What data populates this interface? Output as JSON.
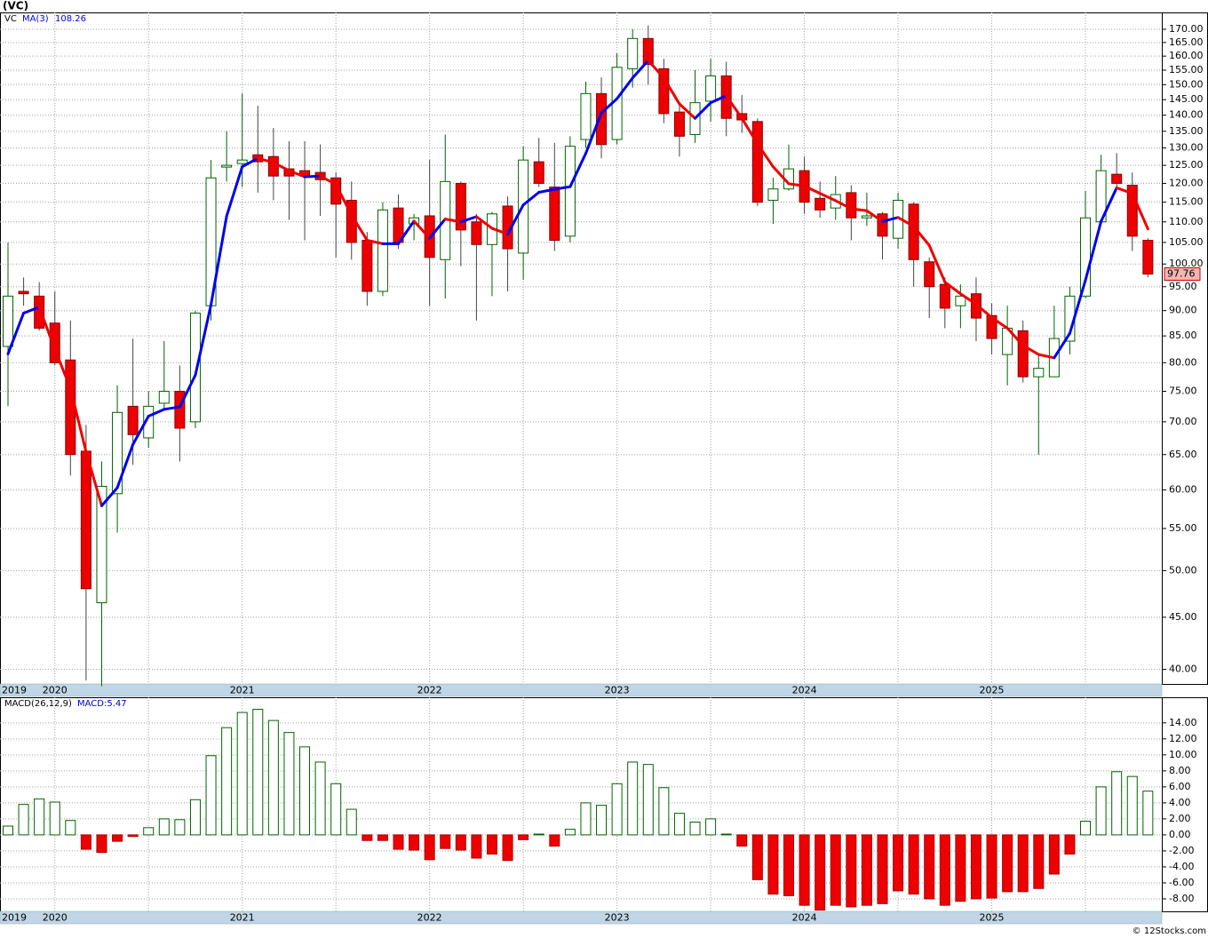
{
  "chart_data": [
    {
      "type": "candlestick",
      "title": "(VC)",
      "categories": [
        "2019",
        null,
        null,
        "2020",
        null,
        null,
        null,
        null,
        null,
        null,
        null,
        null,
        null,
        null,
        null,
        "2021",
        null,
        null,
        null,
        null,
        null,
        null,
        null,
        null,
        null,
        null,
        null,
        "2022",
        null,
        null,
        null,
        null,
        null,
        null,
        null,
        null,
        null,
        null,
        null,
        "2023",
        null,
        null,
        null,
        null,
        null,
        null,
        null,
        null,
        null,
        null,
        null,
        "2024",
        null,
        null,
        null,
        null,
        null,
        null,
        null,
        null,
        null,
        null,
        null,
        "2025",
        null,
        null,
        null,
        null,
        null,
        null,
        null,
        null,
        null,
        null
      ],
      "series": [
        {
          "name": "VC",
          "up_color": "#ffffff",
          "down_color": "#ee0000",
          "edge_color": "#006400",
          "open": [
            83,
            94,
            93,
            87.5,
            80.5,
            65.5,
            46.5,
            59.5,
            72.5,
            67.5,
            73,
            75,
            70,
            91,
            124.5,
            125.5,
            128,
            127.5,
            124,
            123.5,
            123,
            121.5,
            115.5,
            105.5,
            94,
            113.5,
            109.5,
            111.5,
            101,
            120,
            110,
            104.5,
            114,
            102.5,
            126,
            119,
            106.5,
            132.5,
            147,
            132.5,
            155.5,
            166.5,
            155.5,
            141,
            134,
            144.5,
            153,
            140.5,
            138,
            115.5,
            118.5,
            123.5,
            116,
            113.5,
            117.5,
            111,
            112,
            106,
            114.5,
            100.5,
            95.5,
            91,
            93.5,
            89,
            81.5,
            86,
            77.5,
            77.5,
            84,
            93,
            110,
            122.5,
            119.5,
            105.5
          ],
          "high": [
            105,
            97,
            96,
            94,
            88,
            69.5,
            64,
            76,
            84.5,
            75,
            84,
            79.5,
            90,
            126.5,
            135,
            147,
            143,
            136,
            132,
            132,
            131,
            123,
            120.5,
            107.5,
            115,
            117,
            112,
            126.5,
            134,
            120.5,
            112,
            112.5,
            116.5,
            130.5,
            133,
            131.5,
            133.5,
            151,
            152.5,
            161,
            170,
            171.5,
            159,
            144,
            155,
            159,
            158,
            146.5,
            139,
            121.5,
            131,
            127.5,
            120.5,
            122,
            119.5,
            117.5,
            112.5,
            117.5,
            115,
            101.5,
            97,
            95.5,
            97,
            91.5,
            91,
            88,
            81.5,
            91,
            95,
            118,
            128,
            128.5,
            123,
            106
          ],
          "low": [
            72.5,
            91,
            86,
            79.5,
            62,
            39,
            38.5,
            54.5,
            63.5,
            66,
            72,
            64,
            69,
            88,
            120.5,
            119,
            117.5,
            115.5,
            110.5,
            105.5,
            111.5,
            101.5,
            101,
            91,
            93,
            103.5,
            105.5,
            91,
            92.5,
            99.5,
            88,
            93,
            94,
            96.5,
            119,
            103,
            105,
            130,
            127,
            131,
            149,
            150,
            137.5,
            127.5,
            131.5,
            138,
            133.5,
            134.5,
            114,
            109.5,
            118,
            112,
            111,
            110.5,
            105.5,
            109,
            101,
            103.5,
            95,
            88.5,
            86.5,
            86.5,
            84,
            81.5,
            76,
            76.5,
            65,
            77.5,
            81.5,
            92.5,
            110,
            119,
            103,
            97
          ],
          "close": [
            93,
            93.5,
            86.5,
            80,
            65,
            48,
            60.5,
            71.5,
            68,
            72.5,
            75,
            69,
            89.5,
            121.5,
            125,
            126.5,
            126,
            122,
            122,
            122,
            121,
            114.5,
            105,
            94,
            113,
            105,
            111,
            101.5,
            120.5,
            108,
            104.5,
            112,
            103.5,
            126.5,
            120,
            105.5,
            130.5,
            147,
            131,
            156,
            166.5,
            157,
            140.5,
            133.5,
            144,
            153,
            139,
            138.5,
            115,
            118.5,
            124,
            115,
            113,
            117,
            111,
            111.5,
            106.5,
            115.5,
            101,
            95,
            90.5,
            93,
            88.5,
            84.5,
            86.5,
            77.5,
            79,
            84.5,
            93,
            111,
            123.5,
            120,
            106.5,
            97.76
          ]
        },
        {
          "name": "MA(3)",
          "color": "#0000ee",
          "down_color": "#ee0000",
          "values": [
            81.6,
            89.5,
            90.7,
            82.5,
            75.5,
            65.4,
            57.9,
            60.3,
            66.5,
            70.9,
            72,
            72.4,
            77.8,
            91.2,
            111.4,
            124.6,
            127,
            125.8,
            123.5,
            121.8,
            122,
            119.7,
            111.7,
            105.5,
            104.7,
            104.7,
            110.2,
            106,
            110.7,
            110,
            111.3,
            108.4,
            107,
            114.3,
            117.6,
            118.4,
            119.1,
            128.4,
            140.7,
            145.3,
            152.3,
            158.4,
            152.3,
            143.6,
            139,
            144,
            146.3,
            139,
            131.2,
            124.6,
            119.9,
            119.3,
            117.3,
            115.4,
            113.3,
            112.8,
            110.1,
            111.1,
            108.9,
            104.3,
            96,
            93.5,
            91.3,
            88.6,
            86.5,
            83.2,
            81.5,
            80.9,
            85.5,
            96.4,
            110.1,
            118.8,
            117.3,
            108.26
          ]
        }
      ],
      "log": true,
      "grid": true,
      "ylim": [
        38.7,
        176.6
      ],
      "yticks": [
        {
          "value": 40,
          "label": "40.00"
        },
        {
          "value": 45,
          "label": "45.00"
        },
        {
          "value": 50,
          "label": "50.00"
        },
        {
          "value": 55,
          "label": "55.00"
        },
        {
          "value": 60,
          "label": "60.00"
        },
        {
          "value": 65,
          "label": "65.00"
        },
        {
          "value": 70,
          "label": "70.00"
        },
        {
          "value": 75,
          "label": "75.00"
        },
        {
          "value": 80,
          "label": "80.00"
        },
        {
          "value": 85,
          "label": "85.00"
        },
        {
          "value": 90,
          "label": "90.00"
        },
        {
          "value": 95,
          "label": "95.00"
        },
        {
          "value": 100,
          "label": "100.00"
        },
        {
          "value": 105,
          "label": "105.00"
        },
        {
          "value": 110,
          "label": "110.00"
        },
        {
          "value": 115,
          "label": "115.00"
        },
        {
          "value": 120,
          "label": "120.00"
        },
        {
          "value": 125,
          "label": "125.00"
        },
        {
          "value": 130,
          "label": "130.00"
        },
        {
          "value": 135,
          "label": "135.00"
        },
        {
          "value": 140,
          "label": "140.00"
        },
        {
          "value": 145,
          "label": "145.00"
        },
        {
          "value": 150,
          "label": "150.00"
        },
        {
          "value": 155,
          "label": "155.00"
        },
        {
          "value": 160,
          "label": "160.00"
        },
        {
          "value": 165,
          "label": "165.00"
        },
        {
          "value": 170,
          "label": "170.00"
        }
      ]
    },
    {
      "type": "bar",
      "categories": [
        "2019",
        null,
        null,
        "2020",
        null,
        null,
        null,
        null,
        null,
        null,
        null,
        null,
        null,
        null,
        null,
        "2021",
        null,
        null,
        null,
        null,
        null,
        null,
        null,
        null,
        null,
        null,
        null,
        "2022",
        null,
        null,
        null,
        null,
        null,
        null,
        null,
        null,
        null,
        null,
        null,
        "2023",
        null,
        null,
        null,
        null,
        null,
        null,
        null,
        null,
        null,
        null,
        null,
        "2024",
        null,
        null,
        null,
        null,
        null,
        null,
        null,
        null,
        null,
        null,
        null,
        "2025",
        null,
        null,
        null,
        null,
        null,
        null,
        null,
        null,
        null,
        null
      ],
      "series": [
        {
          "name": "MACD(26,12,9)",
          "legend_label": "MACD:5.47",
          "color": "#ffffff",
          "negative_color": "#ee0000",
          "edge_color": "#006400",
          "values": [
            1.1,
            3.8,
            4.5,
            4.1,
            1.8,
            -1.8,
            -2.2,
            -0.8,
            -0.2,
            0.9,
            2,
            1.9,
            4.4,
            9.9,
            13.4,
            15.3,
            15.7,
            14.3,
            12.8,
            11,
            9.1,
            6.4,
            3.2,
            -0.7,
            -0.7,
            -1.8,
            -1.9,
            -3.1,
            -1.7,
            -1.9,
            -2.9,
            -2.4,
            -3.2,
            -0.6,
            0.1,
            -1.4,
            0.7,
            4,
            3.7,
            6.4,
            9.1,
            8.8,
            5.9,
            2.7,
            1.6,
            2,
            0.1,
            -1.4,
            -5.6,
            -7.4,
            -7.6,
            -8.8,
            -9.4,
            -8.8,
            -9,
            -8.8,
            -8.6,
            -7,
            -7.4,
            -8,
            -8.8,
            -8.3,
            -8,
            -7.9,
            -7.1,
            -7.1,
            -6.7,
            -4.9,
            -2.4,
            1.7,
            6,
            7.9,
            7.3,
            5.47
          ]
        }
      ],
      "log": false,
      "grid": true,
      "ylim": [
        -9.56,
        17.2
      ],
      "yticks": [
        {
          "value": -8,
          "label": "-8.00"
        },
        {
          "value": -6,
          "label": "-6.00"
        },
        {
          "value": -4,
          "label": "-4.00"
        },
        {
          "value": -2,
          "label": "-2.00"
        },
        {
          "value": 0,
          "label": "0.00"
        },
        {
          "value": 2,
          "label": "2.00"
        },
        {
          "value": 4,
          "label": "4.00"
        },
        {
          "value": 6,
          "label": "6.00"
        },
        {
          "value": 8,
          "label": "8.00"
        },
        {
          "value": 10,
          "label": "10.00"
        },
        {
          "value": 12,
          "label": "12.00"
        },
        {
          "value": 14,
          "label": "14.00"
        }
      ]
    }
  ],
  "footer": "© 12Stocks.com"
}
